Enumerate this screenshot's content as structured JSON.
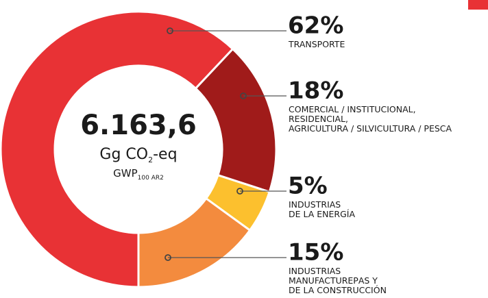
{
  "chart_data": {
    "type": "donut",
    "center_text": {
      "total": "6.163,6",
      "unit": [
        "Gg CO",
        "2",
        "-eq"
      ],
      "metric": [
        "GWP",
        "100 AR2"
      ]
    },
    "categories": [
      [
        "TRANSPORTE"
      ],
      [
        "COMERCIAL / INSTITUCIONAL,",
        "RESIDENCIAL,",
        "AGRICULTURA / SILVICULTURA / PESCA"
      ],
      [
        "INDUSTRIAS",
        "DE LA ENERGÍA"
      ],
      [
        "INDUSTRIAS",
        "MANUFACTUREРAS Y",
        "DE LA CONSTRUCCIÓN"
      ]
    ],
    "values": [
      62,
      18,
      5,
      15
    ],
    "value_labels": [
      "62%",
      "18%",
      "5%",
      "15%"
    ],
    "colors": [
      "#e83235",
      "#a01b1a",
      "#fcc02e",
      "#f38b3e"
    ]
  }
}
